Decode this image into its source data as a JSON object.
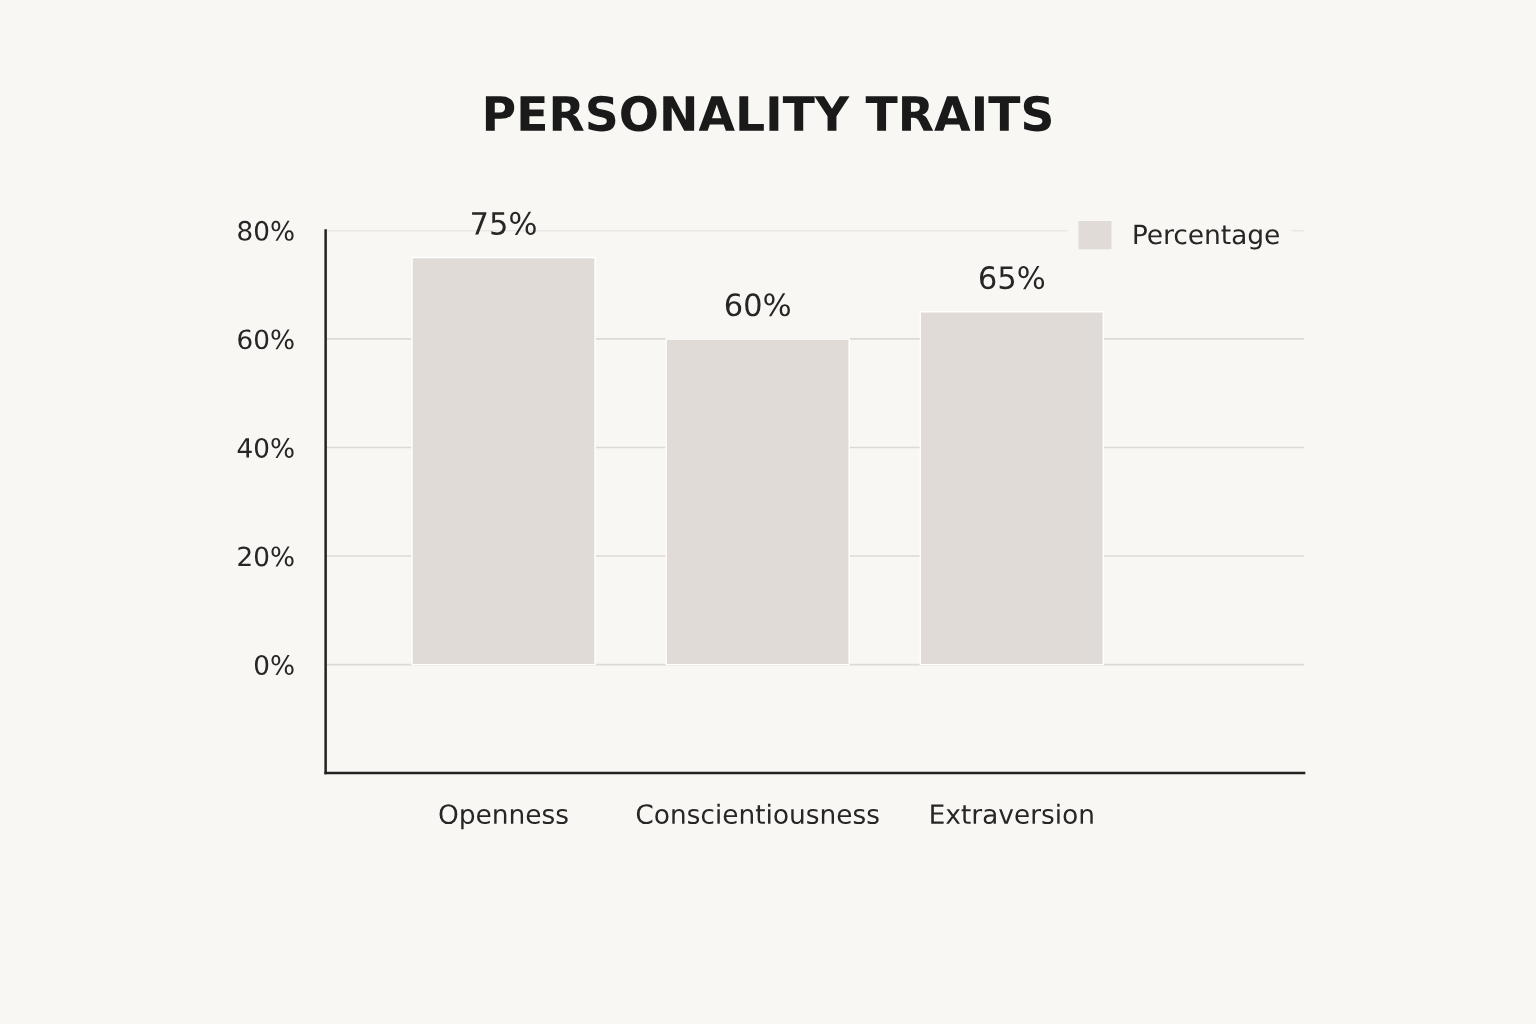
{
  "chart_data": {
    "type": "bar",
    "title": "PERSONALITY TRAITS",
    "categories": [
      "Openness",
      "Conscientiousness",
      "Extraversion"
    ],
    "series": [
      {
        "name": "Percentage",
        "color": "#e0dbd6",
        "values": [
          75,
          60,
          65
        ],
        "value_labels": [
          "75%",
          "60%",
          "65%"
        ]
      }
    ],
    "ylim": [
      -20,
      80
    ],
    "yticks": [
      {
        "value": 0,
        "label": "0%"
      },
      {
        "value": 20,
        "label": "20%"
      },
      {
        "value": 40,
        "label": "40%"
      },
      {
        "value": 60,
        "label": "60%"
      },
      {
        "value": 80,
        "label": "80%"
      }
    ],
    "grid": "y",
    "legend": "top right"
  }
}
